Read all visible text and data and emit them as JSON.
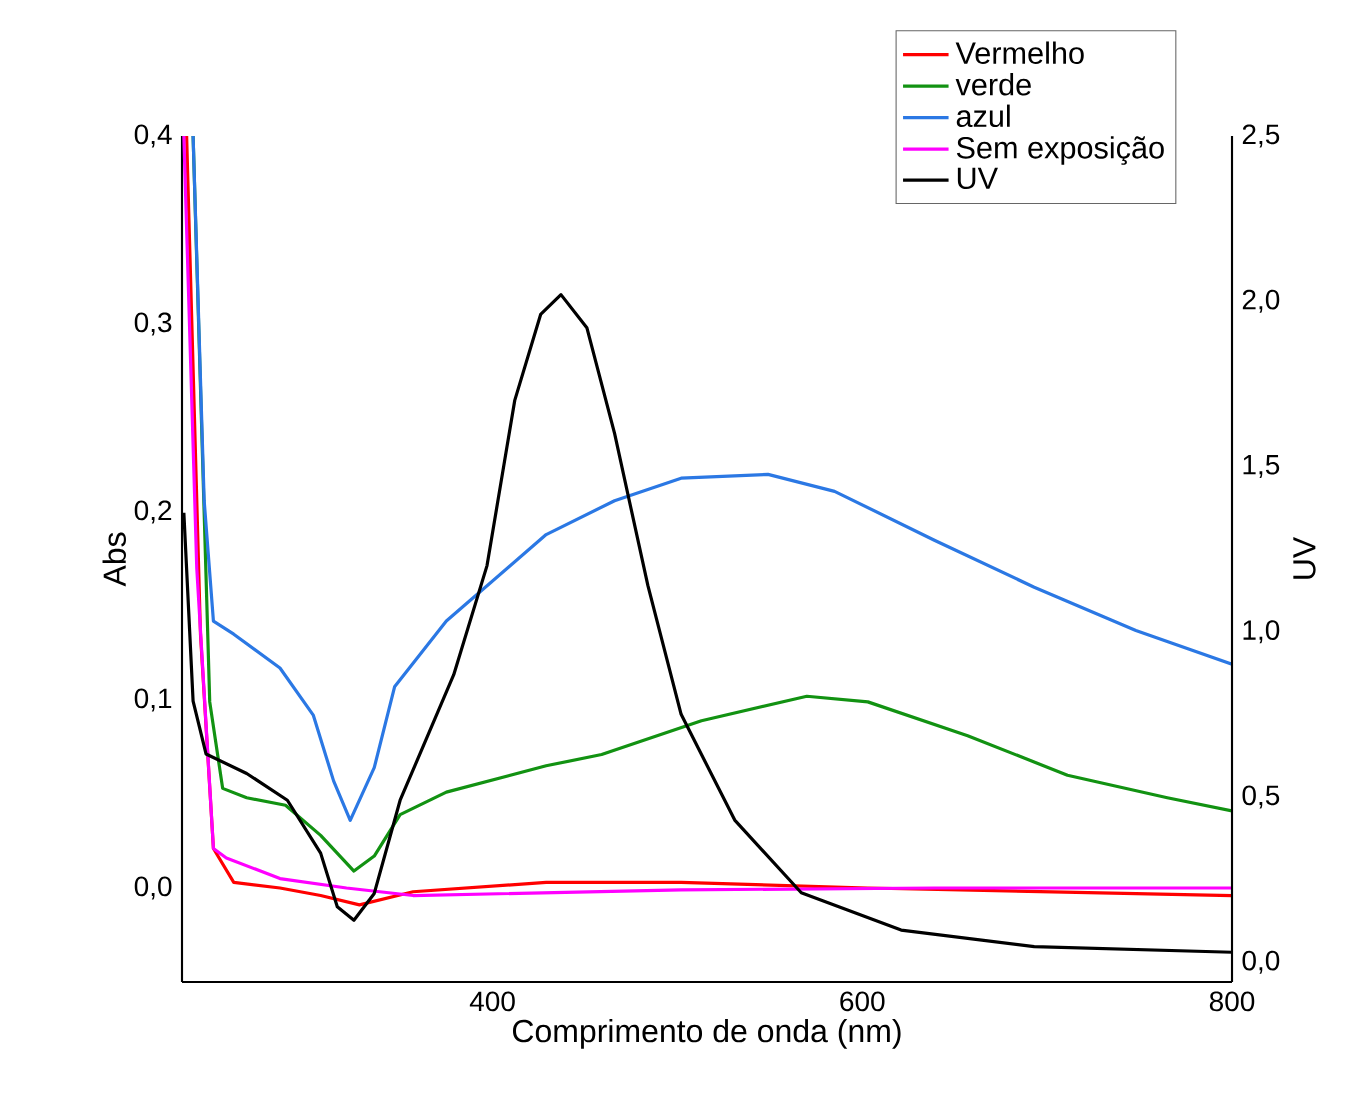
{
  "chart_data": {
    "type": "line",
    "xlabel": "Comprimento de onda (nm)",
    "ylabel": "Abs",
    "y2label": "UV",
    "xlim": [
      232,
      800
    ],
    "xticks": [
      400,
      600,
      800
    ],
    "ylim": [
      -0.05,
      0.4
    ],
    "yticks": [
      {
        "value": 0,
        "label": "0,0"
      },
      {
        "value": 0.1,
        "label": "0,1"
      },
      {
        "value": 0.2,
        "label": "0,2"
      },
      {
        "value": 0.3,
        "label": "0,3"
      },
      {
        "value": 0.4,
        "label": "0,4"
      }
    ],
    "y2lim": [
      -0.06,
      2.5
    ],
    "y2ticks": [
      {
        "value": 0,
        "label": "0,0"
      },
      {
        "value": 0.5,
        "label": "0,5"
      },
      {
        "value": 1,
        "label": "1,0"
      },
      {
        "value": 1.5,
        "label": "1,5"
      },
      {
        "value": 2,
        "label": "2,0"
      },
      {
        "value": 2.5,
        "label": "2,5"
      }
    ],
    "legend": "top right",
    "marker": "none",
    "series": [
      {
        "name": "Vermelho",
        "color": "#ff0000",
        "x": [
          234.5,
          242,
          249,
          260,
          285,
          307,
          328,
          357,
          429,
          459,
          502,
          603,
          800
        ],
        "values": [
          0.4,
          0.135,
          0.021,
          0.003,
          0.0,
          -0.004,
          -0.009,
          -0.002,
          0.003,
          0.003,
          0.003,
          0.0,
          -0.004
        ]
      },
      {
        "name": "verde",
        "color": "#129212",
        "x": [
          238,
          247,
          254,
          267,
          288,
          307,
          325,
          336,
          350,
          375,
          429,
          459,
          513,
          570,
          603,
          657,
          711,
          765,
          800
        ],
        "values": [
          0.4,
          0.099,
          0.053,
          0.048,
          0.044,
          0.028,
          0.009,
          0.017,
          0.039,
          0.051,
          0.065,
          0.071,
          0.089,
          0.102,
          0.099,
          0.081,
          0.06,
          0.048,
          0.041
        ]
      },
      {
        "name": "azul",
        "color": "#2b78e4",
        "x": [
          238,
          244,
          249,
          260,
          285,
          303,
          314,
          323,
          336,
          347,
          375,
          429,
          466,
          502,
          549,
          585,
          639,
          693,
          748,
          800
        ],
        "values": [
          0.4,
          0.206,
          0.142,
          0.135,
          0.117,
          0.092,
          0.057,
          0.036,
          0.064,
          0.107,
          0.142,
          0.188,
          0.206,
          0.218,
          0.22,
          0.211,
          0.185,
          0.16,
          0.137,
          0.119
        ]
      },
      {
        "name": "Sem exposição",
        "color": "#ff00ff",
        "x": [
          233,
          240,
          249,
          256,
          285,
          321,
          357,
          502,
          639,
          800
        ],
        "values": [
          0.4,
          0.17,
          0.021,
          0.016,
          0.005,
          0.0,
          -0.004,
          -0.001,
          0.0,
          0.0
        ]
      },
      {
        "name": "UV",
        "color": "#000000",
        "axis": "y2",
        "x": [
          233,
          238,
          245,
          267,
          289,
          307,
          316,
          325,
          336,
          350,
          379,
          397,
          412,
          426,
          437,
          451,
          466,
          484,
          502,
          531,
          567,
          621,
          693,
          800
        ],
        "values": [
          1.36,
          0.79,
          0.63,
          0.571,
          0.49,
          0.33,
          0.168,
          0.127,
          0.208,
          0.49,
          0.87,
          1.2,
          1.7,
          1.96,
          2.02,
          1.92,
          1.6,
          1.14,
          0.75,
          0.43,
          0.21,
          0.097,
          0.047,
          0.03
        ]
      }
    ]
  }
}
